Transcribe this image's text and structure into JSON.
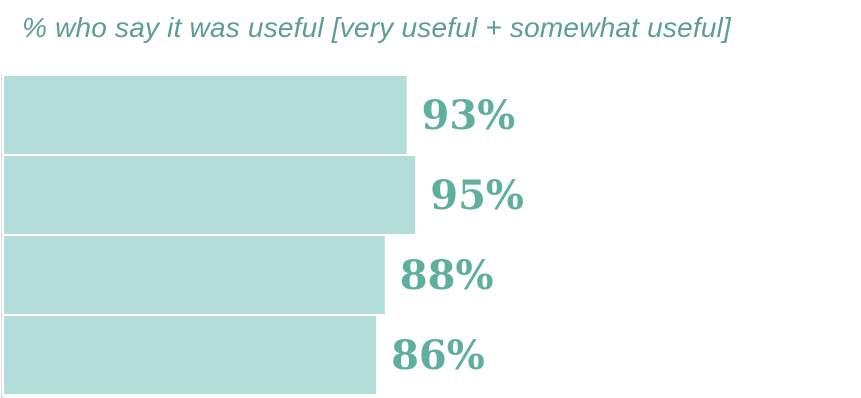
{
  "chart_data": {
    "type": "bar",
    "orientation": "horizontal",
    "title": "% who say it was useful  [very useful + somewhat useful]",
    "categories": [
      "",
      "",
      "",
      ""
    ],
    "values": [
      93,
      95,
      88,
      86
    ],
    "value_labels": [
      "93%",
      "95%",
      "88%",
      "86%"
    ],
    "xlim": [
      0,
      100
    ],
    "grid": false,
    "legend": "none",
    "colors": {
      "bar": "#b3ddd8",
      "label": "#5faf9f",
      "title": "#5c9e95",
      "axis": "#d9d9d9"
    }
  }
}
